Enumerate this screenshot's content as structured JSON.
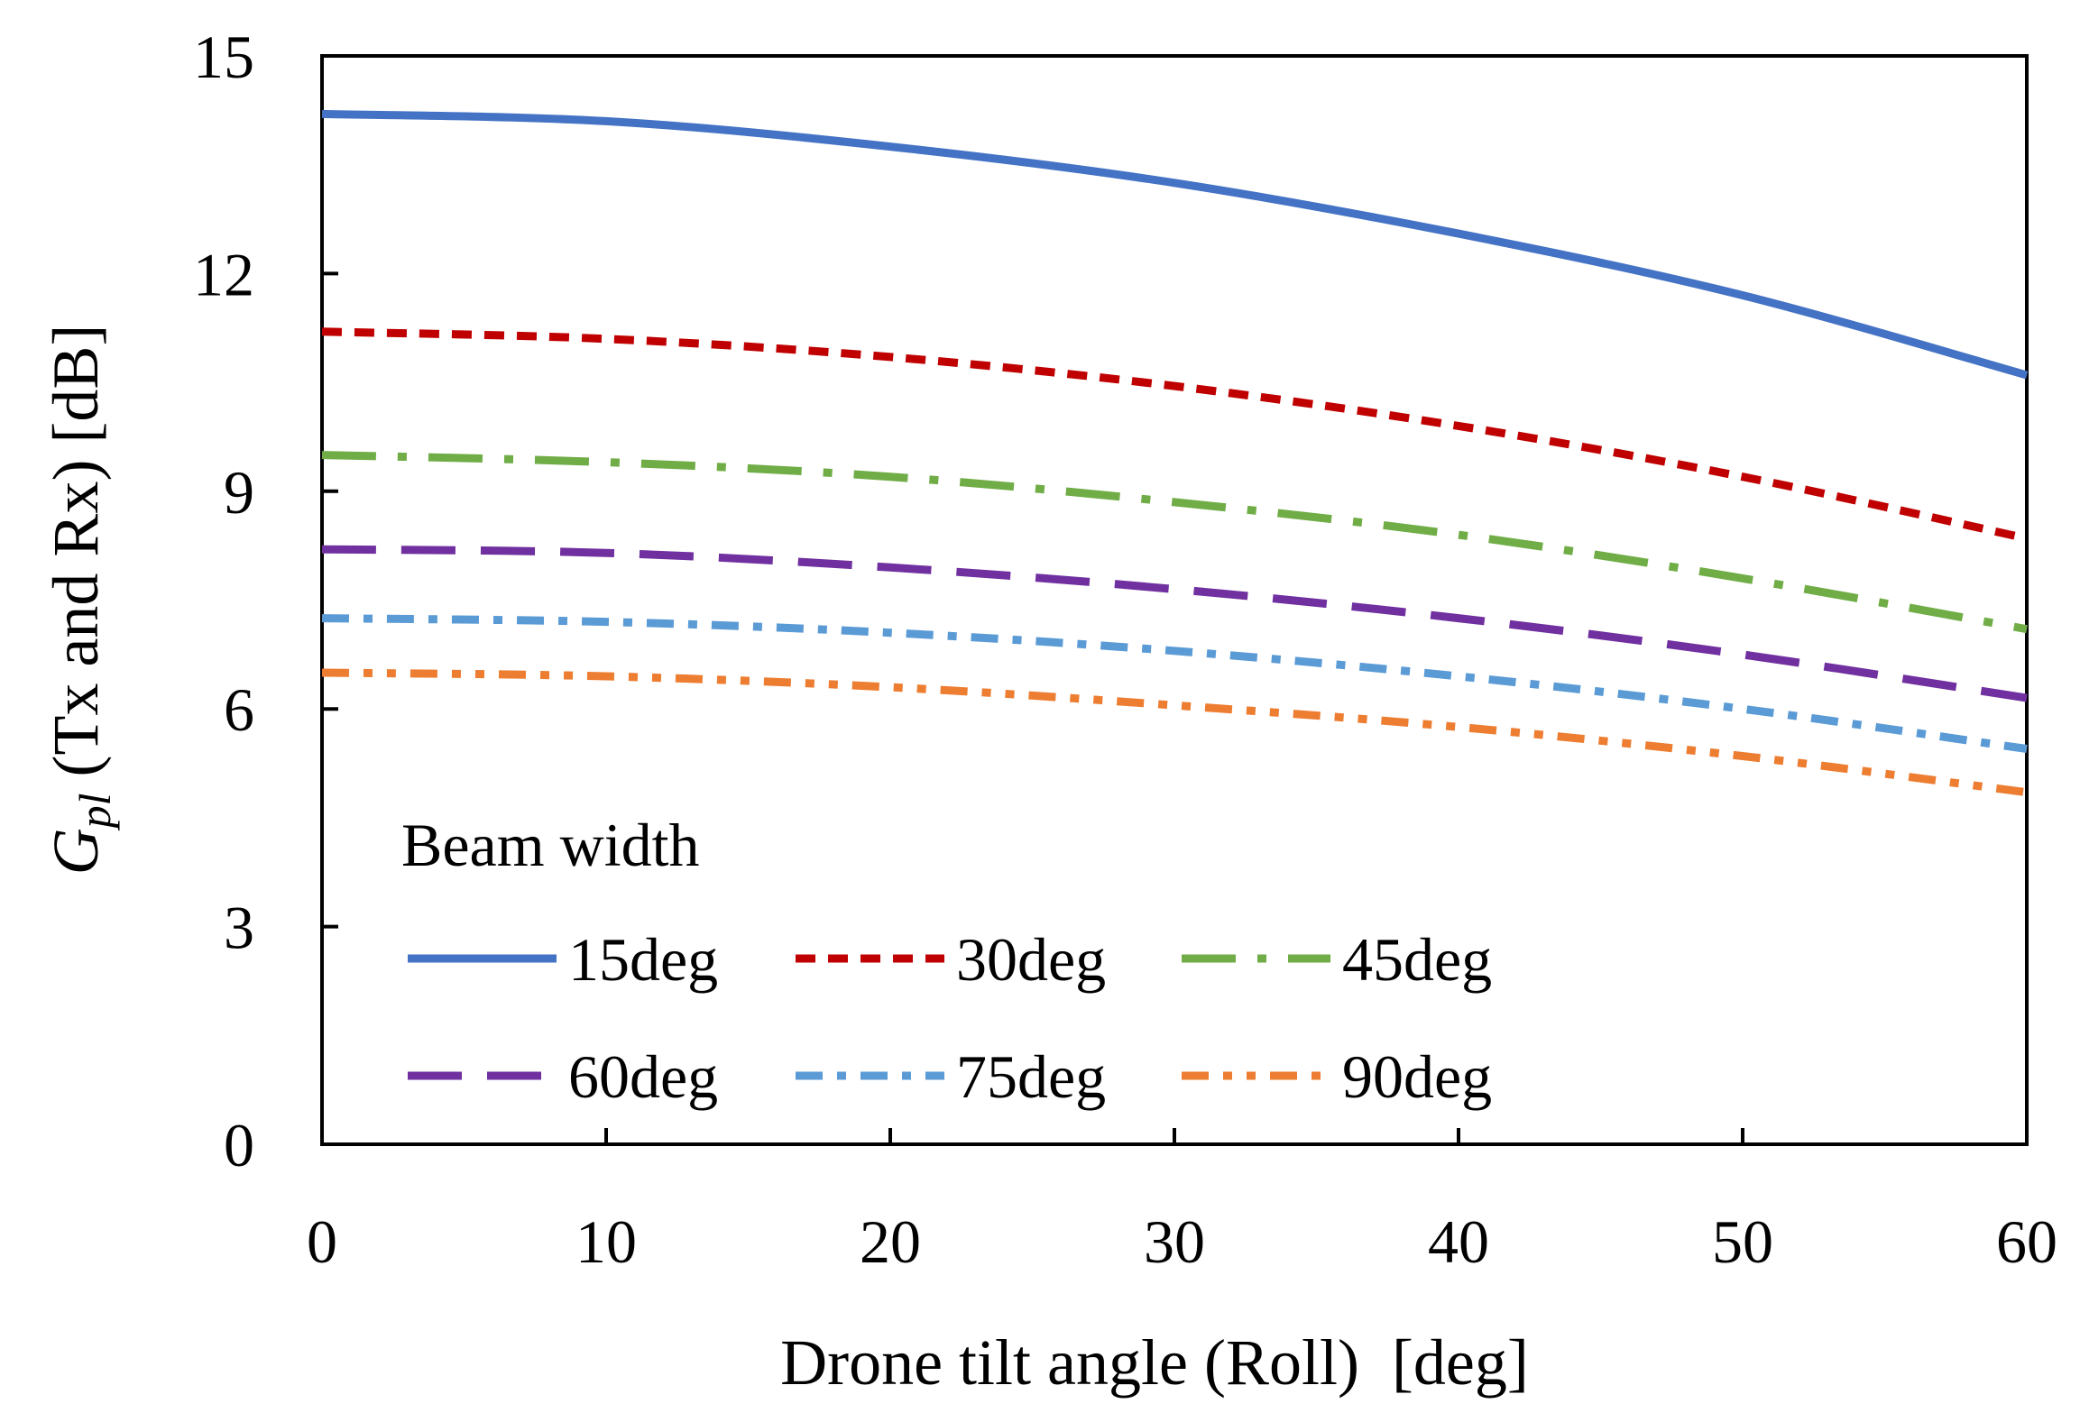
{
  "chart_data": {
    "type": "line",
    "title": "",
    "xlabel": "Drone tilt angle (Roll)  [deg]",
    "ylabel": {
      "symbol": "G",
      "subscript": "pl",
      "rest": " (Tx and Rx) [dB]"
    },
    "x": [
      0,
      10,
      20,
      30,
      40,
      50,
      60
    ],
    "xlim": [
      0,
      60
    ],
    "ylim": [
      0,
      15
    ],
    "xticks": [
      0,
      10,
      20,
      30,
      40,
      50,
      60
    ],
    "yticks": [
      0,
      3,
      6,
      9,
      12,
      15
    ],
    "grid": false,
    "legend": {
      "title": "Beam width",
      "placement": "bottom-left"
    },
    "series": [
      {
        "name": "15deg",
        "color": "#4472C4",
        "dash": "solid",
        "values": [
          14.2,
          14.1,
          13.75,
          13.25,
          12.55,
          11.7,
          10.6
        ]
      },
      {
        "name": "30deg",
        "color": "#C00000",
        "dash": "dash",
        "values": [
          11.2,
          11.1,
          10.85,
          10.45,
          9.9,
          9.2,
          8.35
        ]
      },
      {
        "name": "45deg",
        "color": "#70AD47",
        "dash": "longdash-dot",
        "values": [
          9.5,
          9.4,
          9.2,
          8.85,
          8.4,
          7.8,
          7.1
        ]
      },
      {
        "name": "60deg",
        "color": "#7030A0",
        "dash": "longdash",
        "values": [
          8.2,
          8.15,
          7.95,
          7.65,
          7.25,
          6.75,
          6.15
        ]
      },
      {
        "name": "75deg",
        "color": "#5B9BD5",
        "dash": "dash-dot",
        "values": [
          7.25,
          7.2,
          7.05,
          6.8,
          6.45,
          6.0,
          5.45
        ]
      },
      {
        "name": "90deg",
        "color": "#ED7D31",
        "dash": "dash-dot-dot",
        "values": [
          6.5,
          6.45,
          6.3,
          6.05,
          5.75,
          5.35,
          4.85
        ]
      }
    ]
  }
}
